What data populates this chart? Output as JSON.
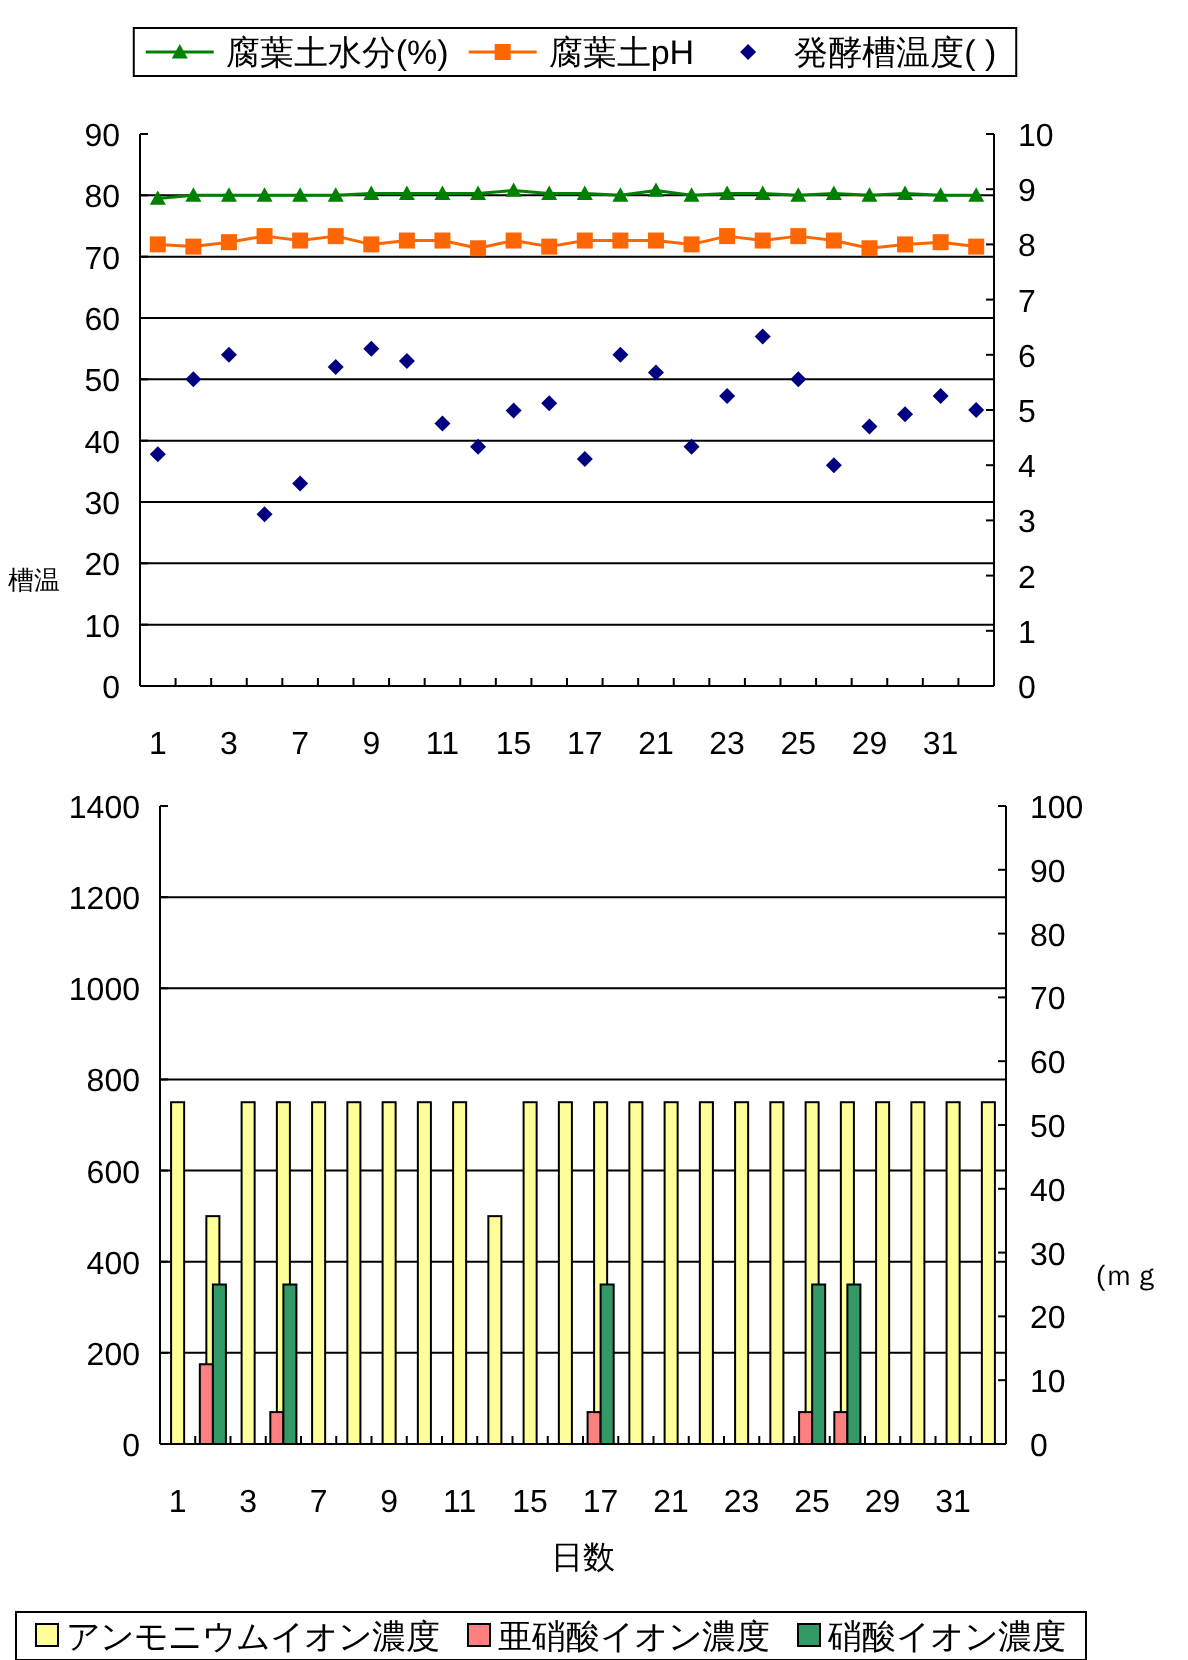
{
  "chart_data": [
    {
      "type": "line",
      "ylabel": "槽温",
      "legend": "top",
      "grid": "y",
      "line_style": "solid",
      "categories": [
        "1",
        null,
        "3",
        null,
        "7",
        null,
        "9",
        null,
        "11",
        null,
        "15",
        null,
        "17",
        null,
        "21",
        null,
        "23",
        null,
        "25",
        null,
        "29",
        null,
        "31",
        null
      ],
      "ylim": [
        0,
        90
      ],
      "yticks": [
        0,
        10,
        20,
        30,
        40,
        50,
        60,
        70,
        80,
        90
      ],
      "y2lim": [
        0,
        10
      ],
      "y2ticks": [
        0,
        1,
        2,
        3,
        4,
        5,
        6,
        7,
        8,
        9,
        10
      ],
      "series": [
        {
          "name": "腐葉土水分(%)",
          "marker": "triangle",
          "color": "#008000",
          "values": [
            79.5,
            80,
            80,
            80,
            80,
            80,
            80.3,
            80.3,
            80.3,
            80.3,
            80.8,
            80.3,
            80.3,
            80,
            80.8,
            80,
            80.3,
            80.3,
            80,
            80.3,
            80,
            80.3,
            80,
            80
          ]
        },
        {
          "name": "腐葉土pH",
          "axis": "y2",
          "marker": "square",
          "color": "#ff6600",
          "values": [
            8.0,
            7.96,
            8.04,
            8.15,
            8.07,
            8.15,
            8.0,
            8.07,
            8.07,
            7.93,
            8.07,
            7.96,
            8.07,
            8.07,
            8.07,
            8.0,
            8.15,
            8.07,
            8.15,
            8.07,
            7.93,
            8.0,
            8.04,
            7.96
          ]
        },
        {
          "name": "発酵槽温度( )",
          "type": "scatter",
          "marker": "diamond",
          "color": "#000080",
          "values": [
            37.8,
            50,
            54,
            28,
            33,
            52,
            55,
            53,
            42.8,
            39,
            44.9,
            46.1,
            37,
            54,
            51.1,
            39,
            47.3,
            57,
            50,
            36,
            42.3,
            44.3,
            47.3,
            45
          ]
        }
      ]
    },
    {
      "type": "bar",
      "xlabel": "日数",
      "y2label": "(ｍｇ",
      "legend": "bottom",
      "grid": "y",
      "categories": [
        "1",
        null,
        "3",
        null,
        "7",
        null,
        "9",
        null,
        "11",
        null,
        "15",
        null,
        "17",
        null,
        "21",
        null,
        "23",
        null,
        "25",
        null,
        "29",
        null,
        "31",
        null
      ],
      "ylim": [
        0,
        1400
      ],
      "yticks": [
        0,
        200,
        400,
        600,
        800,
        1000,
        1200,
        1400
      ],
      "y2lim": [
        0,
        100
      ],
      "y2ticks": [
        0,
        10,
        20,
        30,
        40,
        50,
        60,
        70,
        80,
        90,
        100
      ],
      "series": [
        {
          "name": "アンモニウムイオン濃度",
          "color": "#ffff99",
          "values": [
            750,
            500,
            750,
            750,
            750,
            750,
            750,
            750,
            750,
            500,
            750,
            750,
            750,
            750,
            750,
            750,
            750,
            750,
            750,
            750,
            750,
            750,
            750,
            750
          ]
        },
        {
          "name": "亜硝酸イオン濃度",
          "axis": "y2",
          "color": "#ff8080",
          "values": [
            null,
            12.5,
            null,
            5,
            null,
            null,
            null,
            null,
            null,
            null,
            null,
            null,
            5,
            null,
            null,
            null,
            null,
            null,
            5,
            5,
            null,
            null,
            null,
            null
          ]
        },
        {
          "name": "硝酸イオン濃度",
          "axis": "y2",
          "color": "#339966",
          "values": [
            null,
            25,
            null,
            25,
            null,
            null,
            null,
            null,
            null,
            null,
            null,
            null,
            25,
            null,
            null,
            null,
            null,
            null,
            25,
            25,
            null,
            null,
            null,
            null
          ]
        }
      ]
    }
  ]
}
